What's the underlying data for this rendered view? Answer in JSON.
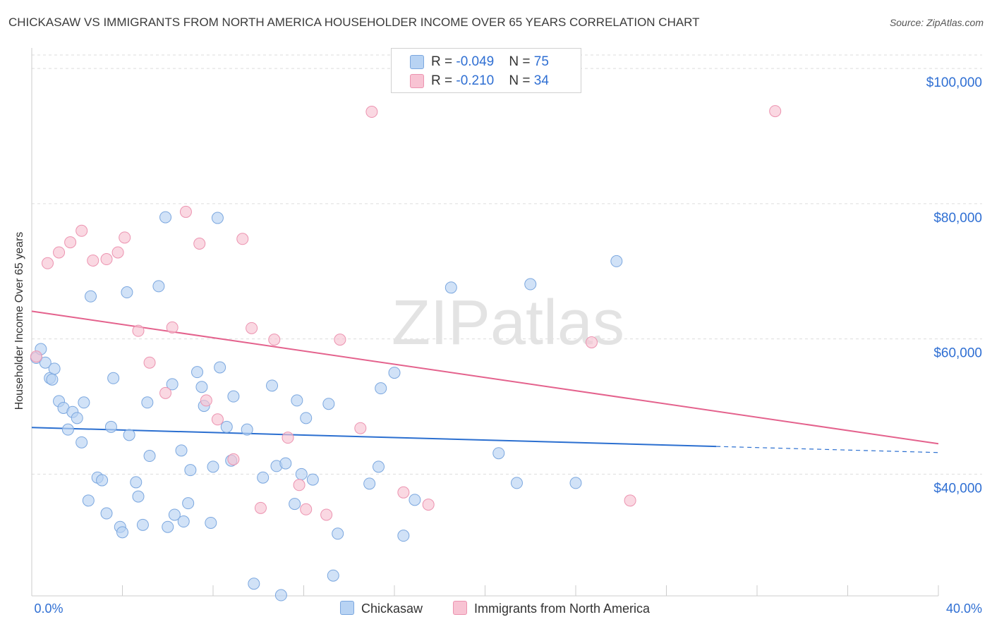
{
  "title": "CHICKASAW VS IMMIGRANTS FROM NORTH AMERICA HOUSEHOLDER INCOME OVER 65 YEARS CORRELATION CHART",
  "source": "Source: ZipAtlas.com",
  "watermark": "ZIPatlas",
  "colors": {
    "blue_fill": "#b8d3f3",
    "blue_stroke": "#7ba7df",
    "blue_line": "#2b6fd0",
    "pink_fill": "#f8c3d3",
    "pink_stroke": "#ec93b0",
    "pink_line": "#e4628d",
    "axis_label": "#2f6fd3",
    "grid": "#dddddd"
  },
  "legend": {
    "rows": [
      {
        "r_label": "R = ",
        "r_value": "-0.049",
        "n_label": "N = ",
        "n_value": "75"
      },
      {
        "r_label": "R = ",
        "r_value": " -0.210",
        "n_label": "N = ",
        "n_value": "34"
      }
    ]
  },
  "chart_data": {
    "type": "scatter",
    "title": "CHICKASAW VS IMMIGRANTS FROM NORTH AMERICA HOUSEHOLDER INCOME OVER 65 YEARS CORRELATION CHART",
    "xlabel": "",
    "ylabel": "Householder Income Over 65 years",
    "xlim": [
      0,
      40
    ],
    "ylim": [
      22000,
      102000
    ],
    "x_tick_labels": [
      "0.0%",
      "40.0%"
    ],
    "y_ticks": [
      40000,
      60000,
      80000,
      100000
    ],
    "y_tick_labels": [
      "$40,000",
      "$60,000",
      "$80,000",
      "$100,000"
    ],
    "grid": true,
    "legend_position": "top-center",
    "series": [
      {
        "name": "Chickasaw",
        "color": "#b8d3f3",
        "points": [
          [
            0.2,
            57.2
          ],
          [
            0.4,
            58.5
          ],
          [
            0.6,
            56.5
          ],
          [
            0.8,
            54.2
          ],
          [
            0.9,
            54.0
          ],
          [
            1.0,
            55.6
          ],
          [
            1.2,
            50.8
          ],
          [
            1.4,
            49.8
          ],
          [
            1.6,
            46.6
          ],
          [
            1.8,
            49.2
          ],
          [
            2.0,
            48.3
          ],
          [
            2.2,
            44.7
          ],
          [
            2.3,
            50.6
          ],
          [
            2.5,
            36.1
          ],
          [
            2.6,
            66.3
          ],
          [
            2.9,
            39.5
          ],
          [
            3.1,
            39.1
          ],
          [
            3.3,
            34.2
          ],
          [
            3.5,
            47.0
          ],
          [
            3.6,
            54.2
          ],
          [
            3.9,
            32.2
          ],
          [
            4.0,
            31.4
          ],
          [
            4.2,
            66.9
          ],
          [
            4.3,
            45.8
          ],
          [
            4.6,
            38.8
          ],
          [
            4.7,
            36.7
          ],
          [
            4.9,
            32.5
          ],
          [
            5.1,
            50.6
          ],
          [
            5.2,
            42.7
          ],
          [
            5.6,
            67.8
          ],
          [
            5.9,
            78.0
          ],
          [
            6.0,
            32.2
          ],
          [
            6.2,
            53.3
          ],
          [
            6.3,
            34.0
          ],
          [
            6.6,
            43.5
          ],
          [
            6.7,
            33.0
          ],
          [
            6.9,
            35.7
          ],
          [
            7.0,
            40.6
          ],
          [
            7.3,
            55.1
          ],
          [
            7.5,
            52.9
          ],
          [
            7.6,
            50.1
          ],
          [
            7.9,
            32.8
          ],
          [
            8.0,
            41.1
          ],
          [
            8.2,
            77.9
          ],
          [
            8.3,
            55.8
          ],
          [
            8.6,
            47.0
          ],
          [
            8.8,
            42.0
          ],
          [
            8.9,
            51.5
          ],
          [
            9.5,
            46.6
          ],
          [
            9.8,
            23.8
          ],
          [
            10.2,
            39.5
          ],
          [
            10.6,
            53.1
          ],
          [
            10.8,
            41.2
          ],
          [
            11.0,
            22.1
          ],
          [
            11.2,
            41.6
          ],
          [
            11.6,
            35.6
          ],
          [
            11.7,
            50.9
          ],
          [
            11.9,
            40.0
          ],
          [
            12.1,
            48.3
          ],
          [
            12.4,
            39.2
          ],
          [
            13.1,
            50.4
          ],
          [
            13.3,
            25.0
          ],
          [
            13.5,
            31.2
          ],
          [
            14.9,
            38.6
          ],
          [
            15.3,
            41.1
          ],
          [
            15.4,
            52.7
          ],
          [
            16.0,
            55.0
          ],
          [
            16.4,
            30.9
          ],
          [
            16.9,
            36.2
          ],
          [
            18.5,
            67.6
          ],
          [
            20.6,
            43.1
          ],
          [
            21.4,
            38.7
          ],
          [
            22.0,
            68.1
          ],
          [
            24.0,
            38.7
          ],
          [
            25.8,
            71.5
          ]
        ]
      },
      {
        "name": "Immigrants from North America",
        "color": "#f8c3d3",
        "points": [
          [
            0.2,
            57.4
          ],
          [
            0.7,
            71.2
          ],
          [
            1.2,
            72.8
          ],
          [
            1.7,
            74.3
          ],
          [
            2.2,
            76.0
          ],
          [
            2.7,
            71.6
          ],
          [
            3.3,
            71.8
          ],
          [
            3.8,
            72.8
          ],
          [
            4.1,
            75.0
          ],
          [
            4.7,
            61.2
          ],
          [
            5.2,
            56.5
          ],
          [
            5.9,
            52.0
          ],
          [
            6.2,
            61.7
          ],
          [
            6.8,
            78.8
          ],
          [
            7.4,
            74.1
          ],
          [
            7.7,
            50.9
          ],
          [
            8.2,
            48.1
          ],
          [
            8.9,
            42.2
          ],
          [
            9.3,
            74.8
          ],
          [
            9.7,
            61.6
          ],
          [
            10.1,
            35.0
          ],
          [
            10.7,
            59.9
          ],
          [
            11.3,
            45.4
          ],
          [
            11.8,
            38.4
          ],
          [
            12.1,
            34.8
          ],
          [
            13.0,
            34.0
          ],
          [
            13.6,
            59.9
          ],
          [
            14.5,
            46.8
          ],
          [
            15.0,
            93.6
          ],
          [
            16.4,
            37.3
          ],
          [
            17.5,
            35.5
          ],
          [
            24.7,
            59.5
          ],
          [
            26.4,
            36.1
          ],
          [
            32.8,
            93.7
          ]
        ]
      }
    ],
    "trend_lines": [
      {
        "series": "Chickasaw",
        "x0": 0,
        "y0": 46.9,
        "x1": 30.2,
        "y1": 44.1,
        "dashed_to_x": 40,
        "dashed_to_y": 43.2
      },
      {
        "series": "Immigrants from North America",
        "x0": 0,
        "y0": 64.1,
        "x1": 40,
        "y1": 44.5
      }
    ]
  }
}
